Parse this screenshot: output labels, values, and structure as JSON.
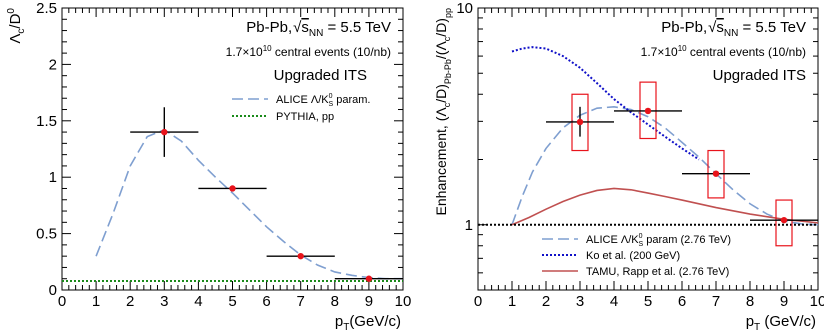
{
  "chart_data": [
    {
      "type": "scatter",
      "ylabel_parts": [
        "Λ",
        "c",
        "/D",
        "0"
      ],
      "xlabel_parts": [
        "p",
        "T",
        "(GeV/c)"
      ],
      "xlim": [
        0,
        10
      ],
      "ylim": [
        0,
        2.5
      ],
      "xticks": [
        0,
        1,
        2,
        3,
        4,
        5,
        6,
        7,
        8,
        9,
        10
      ],
      "xtick_labels": [
        "0",
        "1",
        "2",
        "3",
        "4",
        "5",
        "6",
        "7",
        "8",
        "9",
        "10"
      ],
      "yticks": [
        0,
        0.5,
        1,
        1.5,
        2,
        2.5
      ],
      "ytick_labels": [
        "0",
        "0.5",
        "1",
        "1.5",
        "2",
        "2.5"
      ],
      "annotations": {
        "system_prefix": "Pb-Pb,",
        "snn": "s",
        "snn_sub": "NN",
        "energy": " = 5.5 TeV",
        "events_pre": "1.7×10",
        "events_exp": "10",
        "events_post": " central events (10/nb)",
        "detector": "Upgraded ITS"
      },
      "legend": {
        "placement": "top-right",
        "entries": [
          {
            "parts": [
              "ALICE Λ/K",
              "0",
              "S",
              " param."
            ],
            "style": "long-dash",
            "color": "#7f9fd0"
          },
          {
            "parts": [
              "PYTHIA, pp"
            ],
            "style": "dotted",
            "color": "#1a8a1a"
          }
        ]
      },
      "series": [
        {
          "kind": "points",
          "x": [
            3,
            5,
            7,
            9
          ],
          "y": [
            1.4,
            0.9,
            0.3,
            0.1
          ],
          "x_err": [
            1,
            1,
            1,
            1
          ],
          "y_err": [
            0.22,
            0.0,
            0.0,
            0.0
          ],
          "color": "#e8131b"
        },
        {
          "kind": "curve",
          "x": [
            1.0,
            1.5,
            2.0,
            2.5,
            3.0,
            3.5,
            4.0,
            4.5,
            5.0,
            5.5,
            6.0,
            6.5,
            7.0,
            7.5,
            8.0,
            8.5,
            9.0,
            9.5,
            10.0
          ],
          "y": [
            0.3,
            0.68,
            1.1,
            1.36,
            1.42,
            1.32,
            1.15,
            1.0,
            0.86,
            0.71,
            0.56,
            0.43,
            0.31,
            0.22,
            0.16,
            0.13,
            0.11,
            0.1,
            0.1
          ],
          "color": "#7f9fd0",
          "style": "long-dash"
        },
        {
          "kind": "curve",
          "x": [
            0.0,
            10.0
          ],
          "y": [
            0.08,
            0.08
          ],
          "color": "#1a8a1a",
          "style": "dotted"
        }
      ]
    },
    {
      "type": "scatter",
      "ylabel_parts": [
        "Enhancement, (Λ",
        "c",
        "/D)",
        "Pb-Pb",
        "/(Λ",
        "c",
        "/D)",
        "pp"
      ],
      "xlabel_parts": [
        "p",
        "T",
        " (GeV/c)"
      ],
      "xlim": [
        0,
        10
      ],
      "ylim": [
        0.5,
        10
      ],
      "log_y": true,
      "xticks": [
        0,
        1,
        2,
        3,
        4,
        5,
        6,
        7,
        8,
        9,
        10
      ],
      "xtick_labels": [
        "0",
        "1",
        "2",
        "3",
        "4",
        "5",
        "6",
        "7",
        "8",
        "9",
        "10"
      ],
      "yticks": [
        1,
        10
      ],
      "ytick_labels": [
        "1",
        "10"
      ],
      "annotations": {
        "system_prefix": "Pb-Pb,",
        "snn": "s",
        "snn_sub": "NN",
        "energy": " = 5.5 TeV",
        "events_pre": "1.7×10",
        "events_exp": "10",
        "events_post": " central events (10/nb)",
        "detector": "Upgraded ITS"
      },
      "legend": {
        "placement": "bottom-left",
        "entries": [
          {
            "parts": [
              "ALICE Λ/K",
              "0",
              "S",
              " param (2.76 TeV)"
            ],
            "style": "long-dash",
            "color": "#7f9fd0"
          },
          {
            "parts": [
              "Ko et al. (200 GeV)"
            ],
            "style": "dotted",
            "color": "#1010c8"
          },
          {
            "parts": [
              "TAMU, Rapp et al. (2.76 TeV)"
            ],
            "style": "solid",
            "color": "#c05050"
          }
        ]
      },
      "series": [
        {
          "kind": "points",
          "x": [
            3,
            5,
            7,
            9
          ],
          "y": [
            2.98,
            3.35,
            1.72,
            1.05
          ],
          "x_err": [
            1,
            1,
            1,
            1
          ],
          "y_err_low": [
            2.55,
            3.35,
            1.72,
            1.05
          ],
          "y_err_high": [
            3.5,
            3.35,
            1.72,
            1.05
          ],
          "sys_low": [
            2.2,
            2.5,
            1.33,
            0.8
          ],
          "sys_high": [
            4.0,
            4.55,
            2.2,
            1.3
          ],
          "color": "#e8131b"
        },
        {
          "kind": "curve",
          "x": [
            1.0,
            1.3,
            1.6,
            2.0,
            2.5,
            3.0,
            3.5,
            4.0,
            4.5,
            5.0,
            5.5,
            6.0,
            6.5,
            7.0,
            7.5,
            8.0,
            8.5,
            9.0,
            9.5,
            10.0
          ],
          "y": [
            1.0,
            1.35,
            1.75,
            2.25,
            2.8,
            3.2,
            3.45,
            3.5,
            3.4,
            3.15,
            2.8,
            2.4,
            2.05,
            1.72,
            1.45,
            1.25,
            1.12,
            1.04,
            1.01,
            1.0
          ],
          "color": "#7f9fd0",
          "style": "long-dash"
        },
        {
          "kind": "curve",
          "x": [
            1.0,
            1.3,
            1.6,
            2.0,
            2.5,
            3.0,
            3.5,
            4.0,
            4.5,
            5.0,
            5.5,
            6.0,
            6.5
          ],
          "y": [
            6.3,
            6.5,
            6.6,
            6.5,
            6.0,
            5.3,
            4.5,
            3.8,
            3.3,
            2.9,
            2.55,
            2.25,
            2.0
          ],
          "color": "#1010c8",
          "style": "dotted"
        },
        {
          "kind": "curve",
          "x": [
            1.0,
            1.5,
            2.0,
            2.5,
            3.0,
            3.5,
            4.0,
            4.5,
            5.0,
            5.5,
            6.0,
            7.0,
            8.0,
            9.0,
            10.0
          ],
          "y": [
            1.0,
            1.08,
            1.18,
            1.28,
            1.37,
            1.44,
            1.47,
            1.45,
            1.4,
            1.35,
            1.3,
            1.2,
            1.12,
            1.06,
            1.02
          ],
          "color": "#c05050",
          "style": "solid"
        },
        {
          "kind": "curve",
          "x": [
            0.0,
            10.0
          ],
          "y": [
            1.0,
            1.0
          ],
          "color": "#000000",
          "style": "dotted"
        }
      ]
    }
  ]
}
